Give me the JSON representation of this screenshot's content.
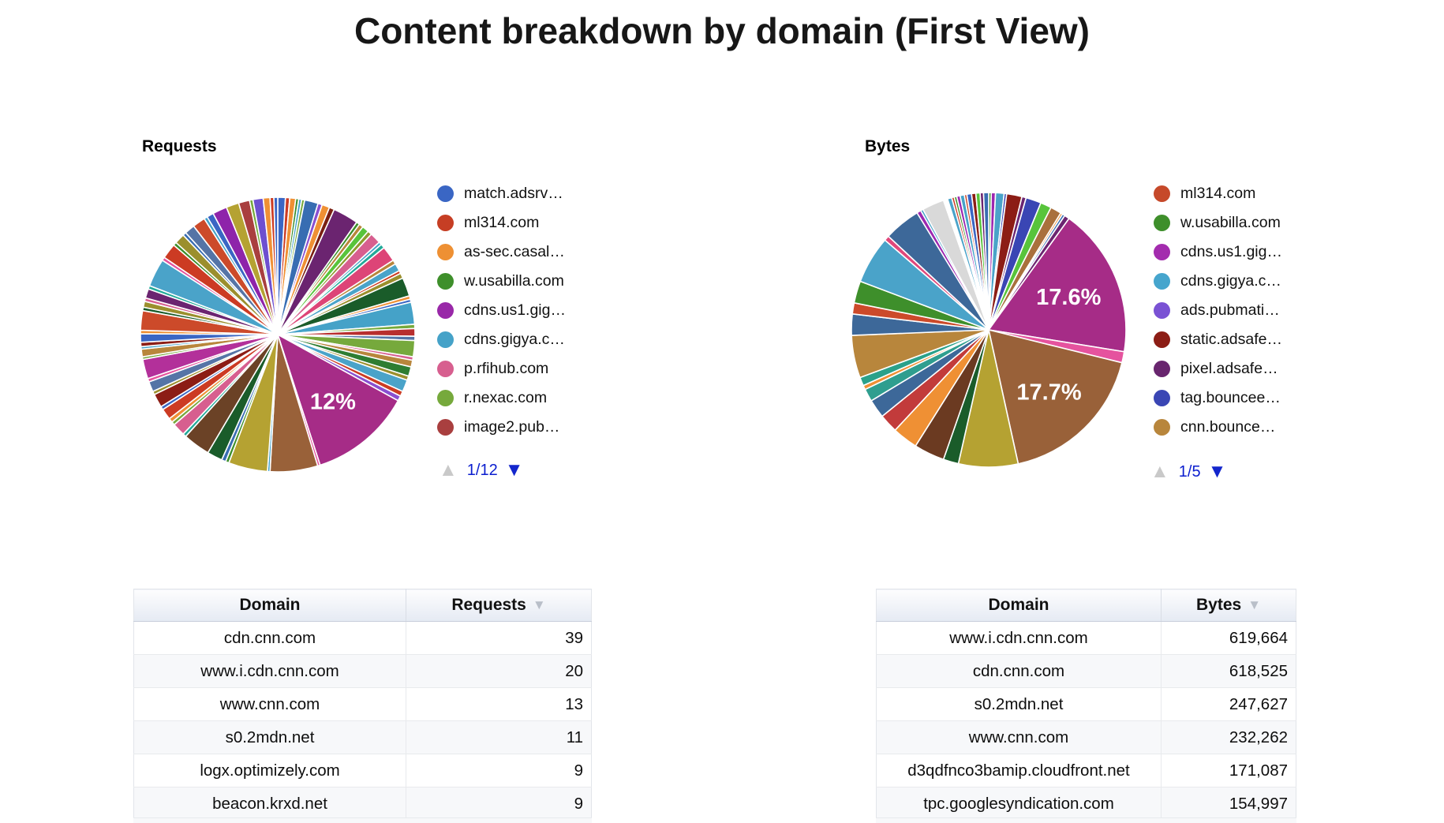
{
  "page": {
    "title": "Content breakdown by domain (First View)"
  },
  "chart_data": [
    {
      "type": "pie",
      "title": "Requests",
      "pager": "1/12",
      "legend": [
        {
          "label": "match.adsrv…",
          "color": "#3a66c4"
        },
        {
          "label": "ml314.com",
          "color": "#c63e24"
        },
        {
          "label": "as-sec.casal…",
          "color": "#ee9033"
        },
        {
          "label": "w.usabilla.com",
          "color": "#3e8f2b"
        },
        {
          "label": "cdns.us1.gig…",
          "color": "#9928a8"
        },
        {
          "label": "cdns.gigya.c…",
          "color": "#45a2c8"
        },
        {
          "label": "p.rfihub.com",
          "color": "#d75f8f"
        },
        {
          "label": "r.nexac.com",
          "color": "#76a93c"
        },
        {
          "label": "image2.pub…",
          "color": "#a93f3f"
        }
      ],
      "slices": [
        {
          "v": 0.9,
          "c": "#3a66c4"
        },
        {
          "v": 0.5,
          "c": "#cc3b23"
        },
        {
          "v": 0.7,
          "c": "#ef9034"
        },
        {
          "v": 0.35,
          "c": "#3e8f2b"
        },
        {
          "v": 0.35,
          "c": "#45a2c8"
        },
        {
          "v": 0.35,
          "c": "#76a93c"
        },
        {
          "v": 1.6,
          "c": "#386db2"
        },
        {
          "v": 0.5,
          "c": "#8a4fd0"
        },
        {
          "v": 0.9,
          "c": "#ef9034"
        },
        {
          "v": 0.6,
          "c": "#7a1f12"
        },
        {
          "v": 3.0,
          "c": "#6b2470"
        },
        {
          "v": 0.4,
          "c": "#3e8f2b"
        },
        {
          "v": 0.5,
          "c": "#b8863c"
        },
        {
          "v": 0.8,
          "c": "#58c43b"
        },
        {
          "v": 0.5,
          "c": "#8f9b2f"
        },
        {
          "v": 1.3,
          "c": "#d75f8f"
        },
        {
          "v": 0.35,
          "c": "#45a2c8"
        },
        {
          "v": 0.5,
          "c": "#22aa99"
        },
        {
          "v": 1.8,
          "c": "#dd4477"
        },
        {
          "v": 0.5,
          "c": "#b8863c"
        },
        {
          "v": 0.9,
          "c": "#4aa3c9"
        },
        {
          "v": 0.35,
          "c": "#cc3b23"
        },
        {
          "v": 0.6,
          "c": "#9b8f2d"
        },
        {
          "v": 2.2,
          "c": "#1a5c2a"
        },
        {
          "v": 0.4,
          "c": "#ef9034"
        },
        {
          "v": 0.35,
          "c": "#3a66c4"
        },
        {
          "v": 2.6,
          "c": "#45a2c8"
        },
        {
          "v": 0.5,
          "c": "#76a93c"
        },
        {
          "v": 0.9,
          "c": "#b82e2e"
        },
        {
          "v": 0.5,
          "c": "#5574a6"
        },
        {
          "v": 1.9,
          "c": "#76a93c"
        },
        {
          "v": 0.4,
          "c": "#d75f8f"
        },
        {
          "v": 0.8,
          "c": "#b8863c"
        },
        {
          "v": 1.1,
          "c": "#2e7d32"
        },
        {
          "v": 0.5,
          "c": "#9b8f2d"
        },
        {
          "v": 1.4,
          "c": "#4aa3c9"
        },
        {
          "v": 0.6,
          "c": "#cc3b23"
        },
        {
          "v": 0.6,
          "c": "#8a4fd0"
        },
        {
          "v": 12.0,
          "c": "#a62c87",
          "label": "12%"
        },
        {
          "v": 0.3,
          "c": "#e5539e"
        },
        {
          "v": 5.6,
          "c": "#996139"
        },
        {
          "v": 0.3,
          "c": "#45a2c8"
        },
        {
          "v": 4.6,
          "c": "#b5a232"
        },
        {
          "v": 0.4,
          "c": "#3e8f2b"
        },
        {
          "v": 0.5,
          "c": "#386db2"
        },
        {
          "v": 1.8,
          "c": "#1a5c2a"
        },
        {
          "v": 3.2,
          "c": "#6b4226"
        },
        {
          "v": 0.4,
          "c": "#22aa99"
        },
        {
          "v": 1.5,
          "c": "#d75f8f"
        },
        {
          "v": 0.4,
          "c": "#76a93c"
        },
        {
          "v": 0.5,
          "c": "#ef9034"
        },
        {
          "v": 1.3,
          "c": "#cc3b23"
        },
        {
          "v": 0.4,
          "c": "#3a66c4"
        },
        {
          "v": 1.6,
          "c": "#8c1d15"
        },
        {
          "v": 0.4,
          "c": "#9b8f2d"
        },
        {
          "v": 1.2,
          "c": "#5574a6"
        },
        {
          "v": 0.4,
          "c": "#e5539e"
        },
        {
          "v": 2.3,
          "c": "#b3309a"
        },
        {
          "v": 0.3,
          "c": "#76a93c"
        },
        {
          "v": 0.9,
          "c": "#b8863c"
        },
        {
          "v": 0.3,
          "c": "#45a2c8"
        },
        {
          "v": 0.5,
          "c": "#8c1d15"
        },
        {
          "v": 1.0,
          "c": "#3a66c4"
        },
        {
          "v": 0.4,
          "c": "#ef9034"
        },
        {
          "v": 2.3,
          "c": "#cc4a2a"
        },
        {
          "v": 0.4,
          "c": "#1a5c2a"
        },
        {
          "v": 0.7,
          "c": "#9b8f2d"
        },
        {
          "v": 0.4,
          "c": "#d75f8f"
        },
        {
          "v": 1.1,
          "c": "#6b2470"
        },
        {
          "v": 0.4,
          "c": "#22aa99"
        },
        {
          "v": 3.3,
          "c": "#4aa3c9"
        },
        {
          "v": 0.4,
          "c": "#e5539e"
        },
        {
          "v": 1.8,
          "c": "#cc3b23"
        },
        {
          "v": 0.4,
          "c": "#3e8f2b"
        },
        {
          "v": 1.2,
          "c": "#9b8f2d"
        },
        {
          "v": 0.4,
          "c": "#386db2"
        },
        {
          "v": 1.2,
          "c": "#5574a6"
        },
        {
          "v": 1.5,
          "c": "#cc4a2a"
        },
        {
          "v": 0.4,
          "c": "#45a2c8"
        },
        {
          "v": 0.8,
          "c": "#3a66c4"
        },
        {
          "v": 1.7,
          "c": "#8e24aa"
        },
        {
          "v": 1.5,
          "c": "#b5a232"
        },
        {
          "v": 1.3,
          "c": "#a93f3f"
        },
        {
          "v": 0.4,
          "c": "#76a93c"
        },
        {
          "v": 1.2,
          "c": "#6d4fd0"
        },
        {
          "v": 0.8,
          "c": "#ef9034"
        },
        {
          "v": 0.45,
          "c": "#cc3b23"
        },
        {
          "v": 0.45,
          "c": "#3a66c4"
        }
      ]
    },
    {
      "type": "pie",
      "title": "Bytes",
      "pager": "1/5",
      "legend": [
        {
          "label": "ml314.com",
          "color": "#c6492a"
        },
        {
          "label": "w.usabilla.com",
          "color": "#3e8f2b"
        },
        {
          "label": "cdns.us1.gig…",
          "color": "#a32cae"
        },
        {
          "label": "cdns.gigya.c…",
          "color": "#46a5cd"
        },
        {
          "label": "ads.pubmati…",
          "color": "#7a52d4"
        },
        {
          "label": "static.adsafe…",
          "color": "#8c1d15"
        },
        {
          "label": "pixel.adsafe…",
          "color": "#68256e"
        },
        {
          "label": "tag.bouncee…",
          "color": "#3a46b4"
        },
        {
          "label": "cnn.bounce…",
          "color": "#b8863c"
        }
      ],
      "slices": [
        {
          "v": 0.3,
          "c": "#3e8f2b"
        },
        {
          "v": 0.5,
          "c": "#9c27b0"
        },
        {
          "v": 1.0,
          "c": "#4aa3c9"
        },
        {
          "v": 0.3,
          "c": "#3a46b4"
        },
        {
          "v": 1.8,
          "c": "#8c1d15"
        },
        {
          "v": 0.5,
          "c": "#6b2470"
        },
        {
          "v": 1.8,
          "c": "#3a46b4"
        },
        {
          "v": 1.3,
          "c": "#58c43b"
        },
        {
          "v": 1.3,
          "c": "#a9703d"
        },
        {
          "v": 0.25,
          "c": "#ef9034"
        },
        {
          "v": 0.3,
          "c": "#386db2"
        },
        {
          "v": 0.6,
          "c": "#6b2470"
        },
        {
          "v": 17.6,
          "c": "#a62c87",
          "label": "17.6%"
        },
        {
          "v": 1.3,
          "c": "#e5539e"
        },
        {
          "v": 17.7,
          "c": "#996139",
          "label": "17.7%"
        },
        {
          "v": 7.0,
          "c": "#b5a232"
        },
        {
          "v": 1.8,
          "c": "#1a5c2a"
        },
        {
          "v": 3.6,
          "c": "#6b3a21"
        },
        {
          "v": 3.0,
          "c": "#ef9034"
        },
        {
          "v": 2.2,
          "c": "#c23b3b"
        },
        {
          "v": 2.2,
          "c": "#3d6899"
        },
        {
          "v": 1.5,
          "c": "#2f9e8f"
        },
        {
          "v": 0.5,
          "c": "#ef9034"
        },
        {
          "v": 1.0,
          "c": "#2aa18a"
        },
        {
          "v": 5.0,
          "c": "#b8863c"
        },
        {
          "v": 2.5,
          "c": "#3d6899"
        },
        {
          "v": 1.3,
          "c": "#cc4a2a"
        },
        {
          "v": 2.6,
          "c": "#3e8f2b"
        },
        {
          "v": 5.6,
          "c": "#4aa3c9"
        },
        {
          "v": 0.6,
          "c": "#e0487b"
        },
        {
          "v": 4.3,
          "c": "#3d6899"
        },
        {
          "v": 0.5,
          "c": "#9c27b0"
        },
        {
          "v": 0.3,
          "c": "#4aa3c9"
        },
        {
          "v": 2.6,
          "c": "#d9d9d9"
        },
        {
          "v": 0.5,
          "c": "#ffffff"
        },
        {
          "v": 0.5,
          "c": "#4aa3c9"
        },
        {
          "v": 0.3,
          "c": "#cc3b23"
        },
        {
          "v": 0.3,
          "c": "#3e8f2b"
        },
        {
          "v": 0.4,
          "c": "#9c27b0"
        },
        {
          "v": 0.5,
          "c": "#45a2c8"
        },
        {
          "v": 0.3,
          "c": "#cc4a2a"
        },
        {
          "v": 0.55,
          "c": "#3a66c4"
        },
        {
          "v": 0.5,
          "c": "#8c1d15"
        },
        {
          "v": 0.5,
          "c": "#58c43b"
        },
        {
          "v": 0.4,
          "c": "#6b2470"
        },
        {
          "v": 0.6,
          "c": "#386db2"
        }
      ]
    }
  ],
  "tables": {
    "requests": {
      "headers": [
        "Domain",
        "Requests"
      ],
      "rows": [
        {
          "domain": "cdn.cnn.com",
          "value": "39"
        },
        {
          "domain": "www.i.cdn.cnn.com",
          "value": "20"
        },
        {
          "domain": "www.cnn.com",
          "value": "13"
        },
        {
          "domain": "s0.2mdn.net",
          "value": "11"
        },
        {
          "domain": "logx.optimizely.com",
          "value": "9"
        },
        {
          "domain": "beacon.krxd.net",
          "value": "9"
        }
      ]
    },
    "bytes": {
      "headers": [
        "Domain",
        "Bytes"
      ],
      "rows": [
        {
          "domain": "www.i.cdn.cnn.com",
          "value": "619,664"
        },
        {
          "domain": "cdn.cnn.com",
          "value": "618,525"
        },
        {
          "domain": "s0.2mdn.net",
          "value": "247,627"
        },
        {
          "domain": "www.cnn.com",
          "value": "232,262"
        },
        {
          "domain": "d3qdfnco3bamip.cloudfront.net",
          "value": "171,087"
        },
        {
          "domain": "tpc.googlesyndication.com",
          "value": "154,997"
        }
      ]
    }
  }
}
